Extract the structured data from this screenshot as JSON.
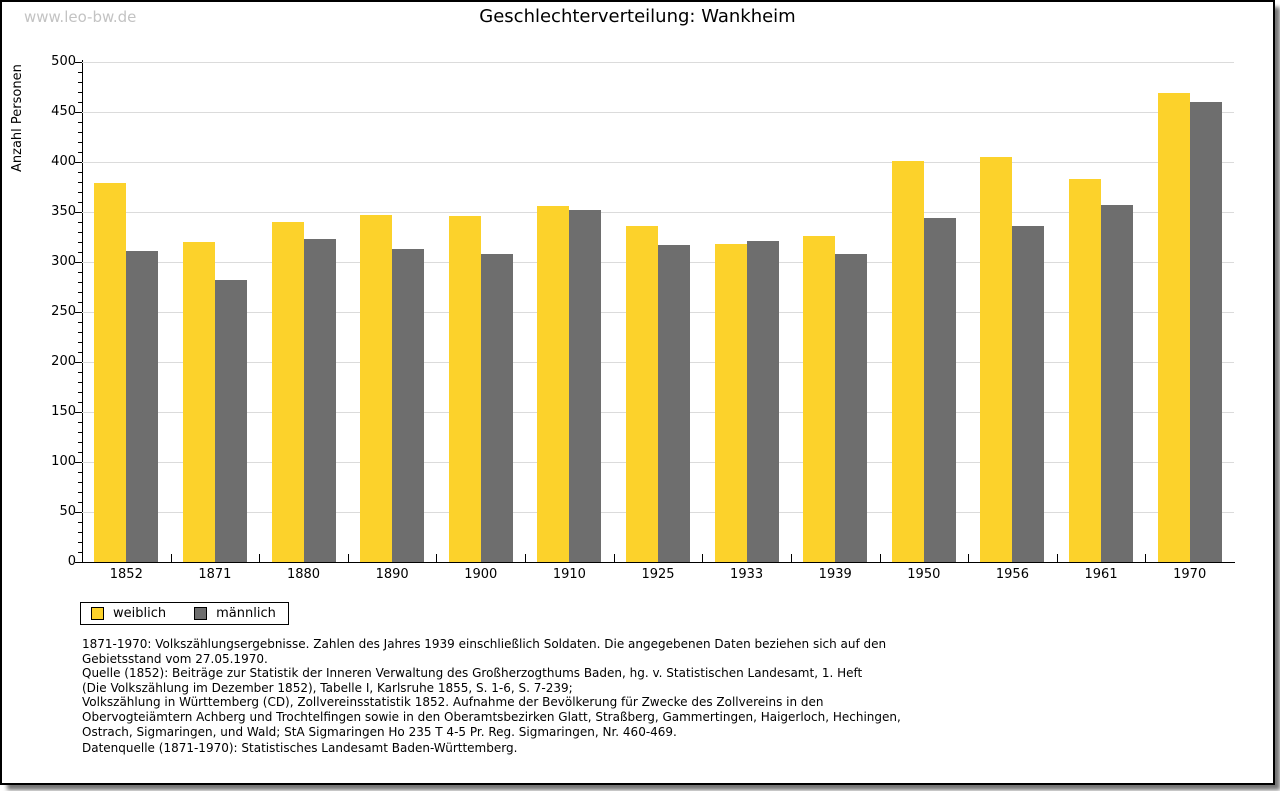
{
  "watermark": "www.leo-bw.de",
  "title": "Geschlechterverteilung: Wankheim",
  "chart_data": {
    "type": "bar",
    "title": "Geschlechterverteilung: Wankheim",
    "xlabel": "",
    "ylabel": "Anzahl Personen",
    "ylim": [
      0,
      500
    ],
    "ytick_major_step": 50,
    "ytick_minor_step": 10,
    "grid": true,
    "legend_position": "bottom-left",
    "categories": [
      "1852",
      "1871",
      "1880",
      "1890",
      "1900",
      "1910",
      "1925",
      "1933",
      "1939",
      "1950",
      "1956",
      "1961",
      "1970"
    ],
    "series": [
      {
        "name": "weiblich",
        "color": "#FCD22B",
        "values": [
          379,
          320,
          340,
          347,
          346,
          356,
          336,
          318,
          326,
          401,
          405,
          383,
          469
        ]
      },
      {
        "name": "männlich",
        "color": "#6E6E6E",
        "values": [
          311,
          282,
          323,
          313,
          308,
          352,
          317,
          321,
          308,
          344,
          336,
          357,
          460
        ]
      }
    ]
  },
  "colors": {
    "weiblich": "#FCD22B",
    "maennlich": "#6E6E6E",
    "gridline": "#DBDBDB",
    "axis": "#000000",
    "watermark": "#C3C3C3"
  },
  "footnotes": {
    "lines": [
      "1871-1970: Volkszählungsergebnisse. Zahlen des Jahres 1939 einschließlich Soldaten. Die angegebenen Daten beziehen sich auf den",
      "Gebietsstand vom 27.05.1970.",
      "Quelle (1852): Beiträge zur Statistik der Inneren Verwaltung des Großherzogthums Baden, hg. v. Statistischen Landesamt, 1. Heft",
      "(Die Volkszählung im Dezember 1852), Tabelle I, Karlsruhe 1855, S. 1-6, S. 7-239;",
      "Volkszählung in Württemberg (CD), Zollvereinsstatistik 1852. Aufnahme der Bevölkerung für Zwecke des Zollvereins in den",
      "Obervogteiämtern Achberg und Trochtelfingen sowie in den Oberamtsbezirken Glatt, Straßberg, Gammertingen, Haigerloch, Hechingen,",
      "Ostrach, Sigmaringen, und Wald; StA Sigmaringen Ho 235 T 4-5 Pr. Reg. Sigmaringen, Nr. 460-469."
    ],
    "datasource": "Datenquelle (1871-1970): Statistisches Landesamt Baden-Württemberg."
  }
}
